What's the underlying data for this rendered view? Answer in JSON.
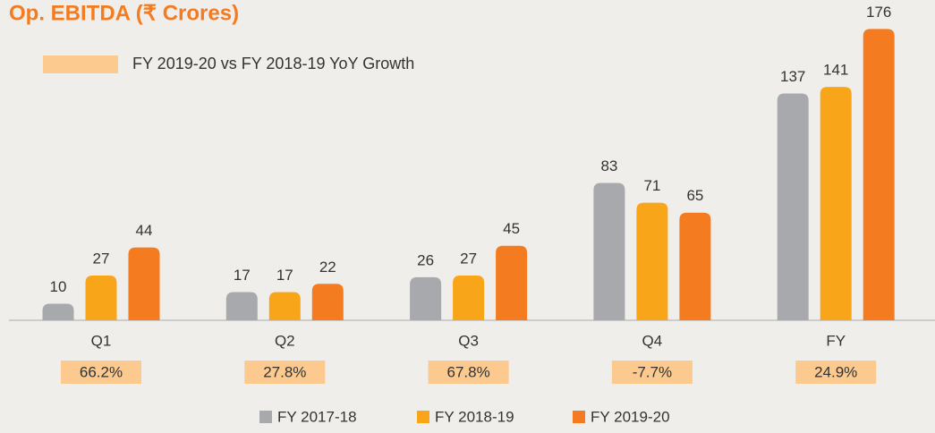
{
  "chart_data": {
    "type": "bar",
    "title": "Op. EBITDA (₹ Crores)",
    "annotation": "FY 2019-20 vs FY 2018-19 YoY Growth",
    "annotation_color": "#fcc98e",
    "categories": [
      "Q1",
      "Q2",
      "Q3",
      "Q4",
      "FY"
    ],
    "growth": [
      "66.2%",
      "27.8%",
      "67.8%",
      "-7.7%",
      "24.9%"
    ],
    "series": [
      {
        "name": "FY 2017-18",
        "color": "#a7a9ac",
        "values": [
          10,
          17,
          26,
          83,
          137
        ]
      },
      {
        "name": "FY 2018-19",
        "color": "#f9a51a",
        "values": [
          27,
          17,
          27,
          71,
          141
        ]
      },
      {
        "name": "FY 2019-20",
        "color": "#f47b20",
        "values": [
          44,
          22,
          45,
          65,
          176
        ]
      }
    ]
  }
}
